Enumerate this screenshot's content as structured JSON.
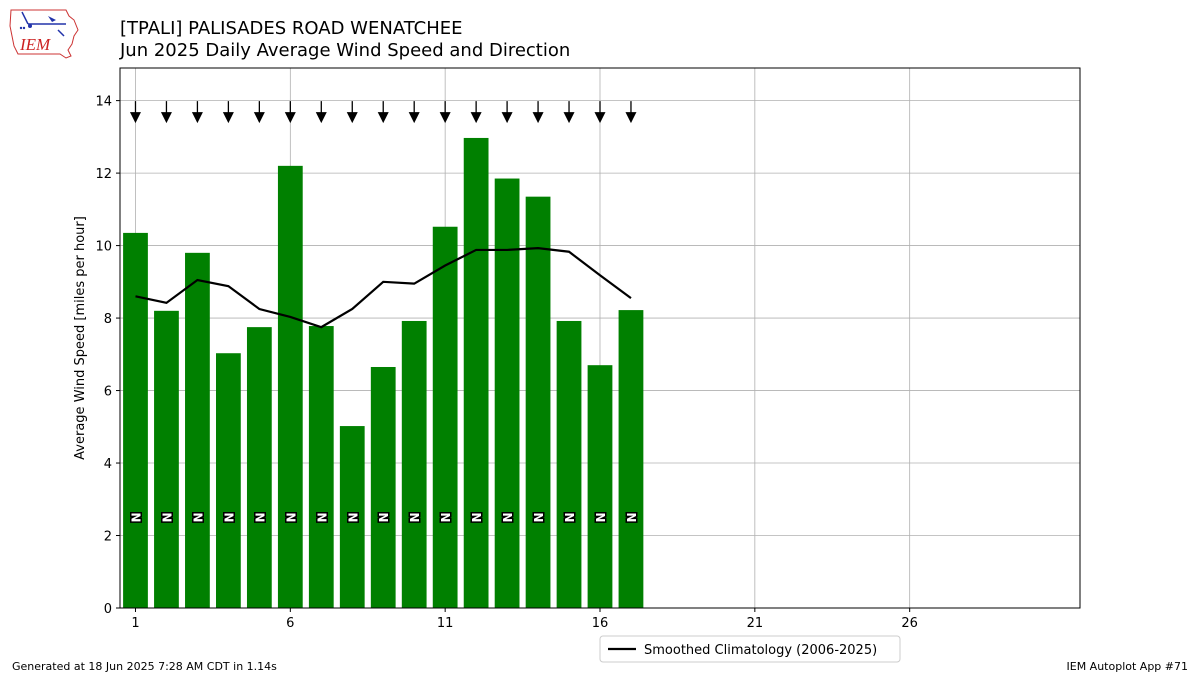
{
  "header": {
    "title_line1": "[TPALI] PALISADES ROAD WENATCHEE",
    "title_line2": "Jun 2025 Daily Average Wind Speed and Direction"
  },
  "logo": {
    "text": "IEM",
    "icon": "iowa-state-iem-logo"
  },
  "footer": {
    "generated": "Generated at 18 Jun 2025 7:28 AM CDT in 1.14s",
    "app": "IEM Autoplot App #71"
  },
  "colors": {
    "bars": "#008000",
    "climatology": "#000000",
    "grid": "#b0b0b0"
  },
  "chart_data": {
    "type": "bar",
    "ylabel": "Average Wind Speed [miles per hour]",
    "xlabel": "",
    "xlim": [
      0.5,
      31.5
    ],
    "ylim": [
      0,
      14.9
    ],
    "xticks": [
      1,
      6,
      11,
      16,
      21,
      26
    ],
    "yticks": [
      0,
      2,
      4,
      6,
      8,
      10,
      12,
      14
    ],
    "grid": true,
    "legend_position": "below-center",
    "days": [
      1,
      2,
      3,
      4,
      5,
      6,
      7,
      8,
      9,
      10,
      11,
      12,
      13,
      14,
      15,
      16,
      17
    ],
    "series": [
      {
        "name": "",
        "kind": "bar",
        "values": [
          10.35,
          8.2,
          9.8,
          7.03,
          7.75,
          12.2,
          7.78,
          5.02,
          6.65,
          7.92,
          10.52,
          12.97,
          11.85,
          11.35,
          7.92,
          6.7,
          8.22
        ]
      },
      {
        "name": "Smoothed Climatology (2006-2025)",
        "kind": "line",
        "values": [
          8.6,
          8.42,
          9.05,
          8.88,
          8.25,
          8.03,
          7.75,
          8.25,
          9.0,
          8.95,
          9.45,
          9.88,
          9.88,
          9.93,
          9.83,
          9.18,
          8.55
        ]
      }
    ],
    "direction_labels": [
      "N",
      "N",
      "N",
      "N",
      "N",
      "N",
      "N",
      "N",
      "N",
      "N",
      "N",
      "N",
      "N",
      "N",
      "N",
      "N",
      "N"
    ],
    "direction_label_y": 2.5,
    "arrow_y": 13.6,
    "arrow_direction_deg": [
      0,
      0,
      0,
      0,
      0,
      0,
      0,
      0,
      0,
      0,
      0,
      0,
      0,
      0,
      0,
      0,
      0
    ]
  }
}
